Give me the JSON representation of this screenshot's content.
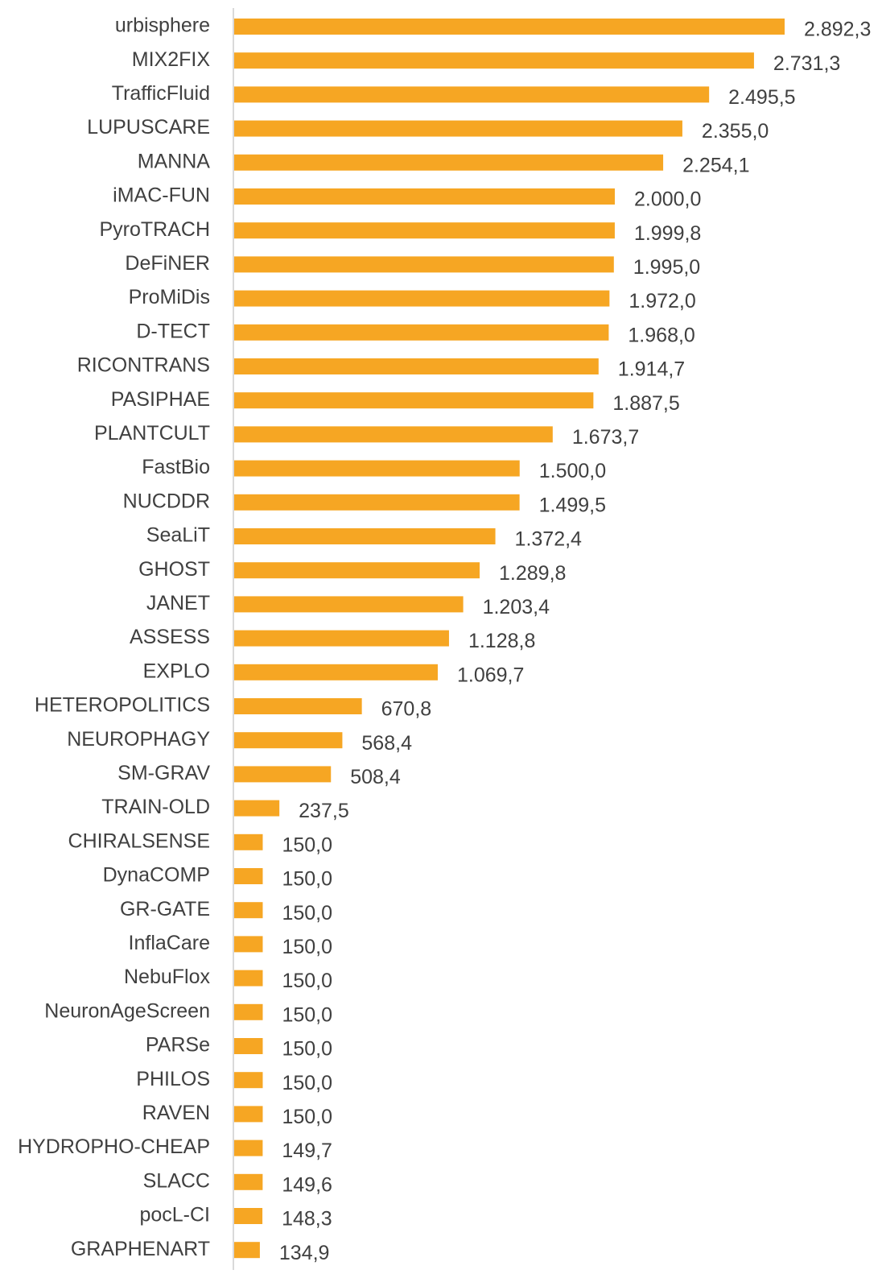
{
  "chart_data": {
    "type": "bar",
    "orientation": "horizontal",
    "color": "#f6a623",
    "categories": [
      "urbisphere",
      "MIX2FIX",
      "TrafficFluid",
      "LUPUSCARE",
      "MANNA",
      "iMAC-FUN",
      "PyroTRACH",
      "DeFiNER",
      "ProMiDis",
      "D-TECT",
      "RICONTRANS",
      "PASIPHAE",
      "PLANTCULT",
      "FastBio",
      "NUCDDR",
      "SeaLiT",
      "GHOST",
      "JANET",
      "ASSESS",
      "EXPLO",
      "HETEROPOLITICS",
      "NEUROPHAGY",
      "SM-GRAV",
      "TRAIN-OLD",
      "CHIRALSENSE",
      "DynaCOMP",
      "GR-GATE",
      "InflaCare",
      "NebuFlox",
      "NeuronAgeScreen",
      "PARSe",
      "PHILOS",
      "RAVEN",
      "HYDROPHO-CHEAP",
      "SLACC",
      "pocL-CI",
      "GRAPHENART"
    ],
    "values": [
      2892.3,
      2731.3,
      2495.5,
      2355.0,
      2254.1,
      2000.0,
      1999.8,
      1995.0,
      1972.0,
      1968.0,
      1914.7,
      1887.5,
      1673.7,
      1500.0,
      1499.5,
      1372.4,
      1289.8,
      1203.4,
      1128.8,
      1069.7,
      670.8,
      568.4,
      508.4,
      237.5,
      150.0,
      150.0,
      150.0,
      150.0,
      150.0,
      150.0,
      150.0,
      150.0,
      150.0,
      149.7,
      149.6,
      148.3,
      134.9
    ],
    "value_labels": [
      "2.892,3",
      "2.731,3",
      "2.495,5",
      "2.355,0",
      "2.254,1",
      "2.000,0",
      "1.999,8",
      "1.995,0",
      "1.972,0",
      "1.968,0",
      "1.914,7",
      "1.887,5",
      "1.673,7",
      "1.500,0",
      "1.499,5",
      "1.372,4",
      "1.289,8",
      "1.203,4",
      "1.128,8",
      "1.069,7",
      "670,8",
      "568,4",
      "508,4",
      "237,5",
      "150,0",
      "150,0",
      "150,0",
      "150,0",
      "150,0",
      "150,0",
      "150,0",
      "150,0",
      "150,0",
      "149,7",
      "149,6",
      "148,3",
      "134,9"
    ]
  }
}
